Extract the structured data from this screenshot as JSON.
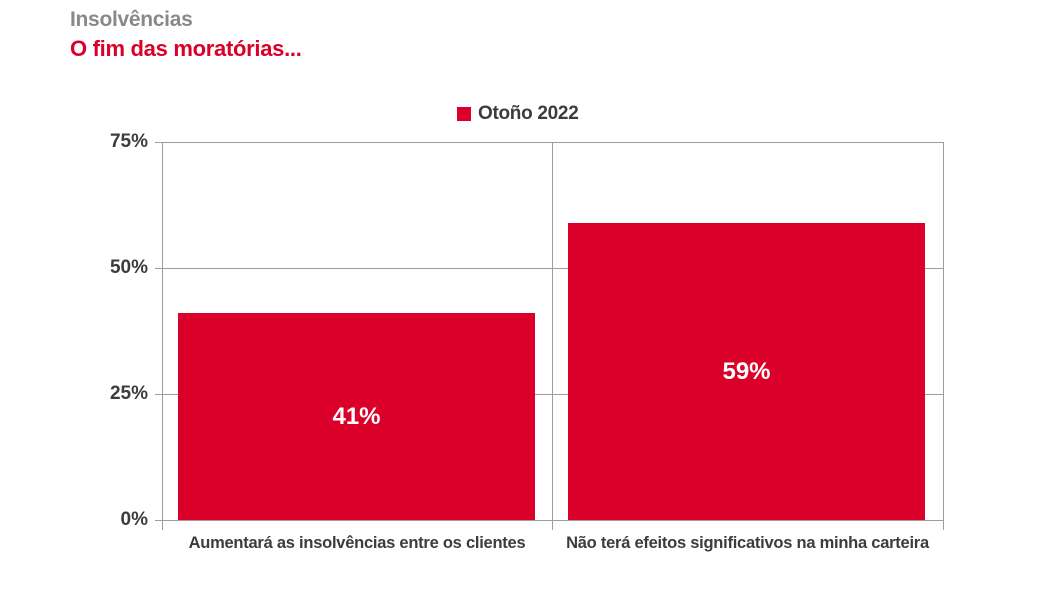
{
  "header": {
    "title": "Insolvências",
    "subtitle": "O fim das moratórias...",
    "title_color": "#898989",
    "subtitle_color": "#db0029"
  },
  "legend": {
    "label": "Otoño 2022",
    "swatch_color": "#db0029"
  },
  "colors": {
    "bar": "#db0029",
    "grid": "#9d9d9d",
    "text_dark": "#3c3c3b",
    "bar_label": "#ffffff"
  },
  "chart_data": {
    "type": "bar",
    "title": "Insolvências — O fim das moratórias...",
    "categories": [
      "Aumentará as insolvências entre os clientes",
      "Não terá efeitos significativos na minha carteira"
    ],
    "series": [
      {
        "name": "Otoño 2022",
        "values": [
          41,
          59
        ]
      }
    ],
    "value_labels": [
      "41%",
      "59%"
    ],
    "yticks": [
      "75%",
      "50%",
      "25%",
      "0%"
    ],
    "ylim": [
      0,
      75
    ],
    "xlabel": "",
    "ylabel": "",
    "grid": true,
    "legend_position": "top-center",
    "bar_color": "#db0029"
  }
}
